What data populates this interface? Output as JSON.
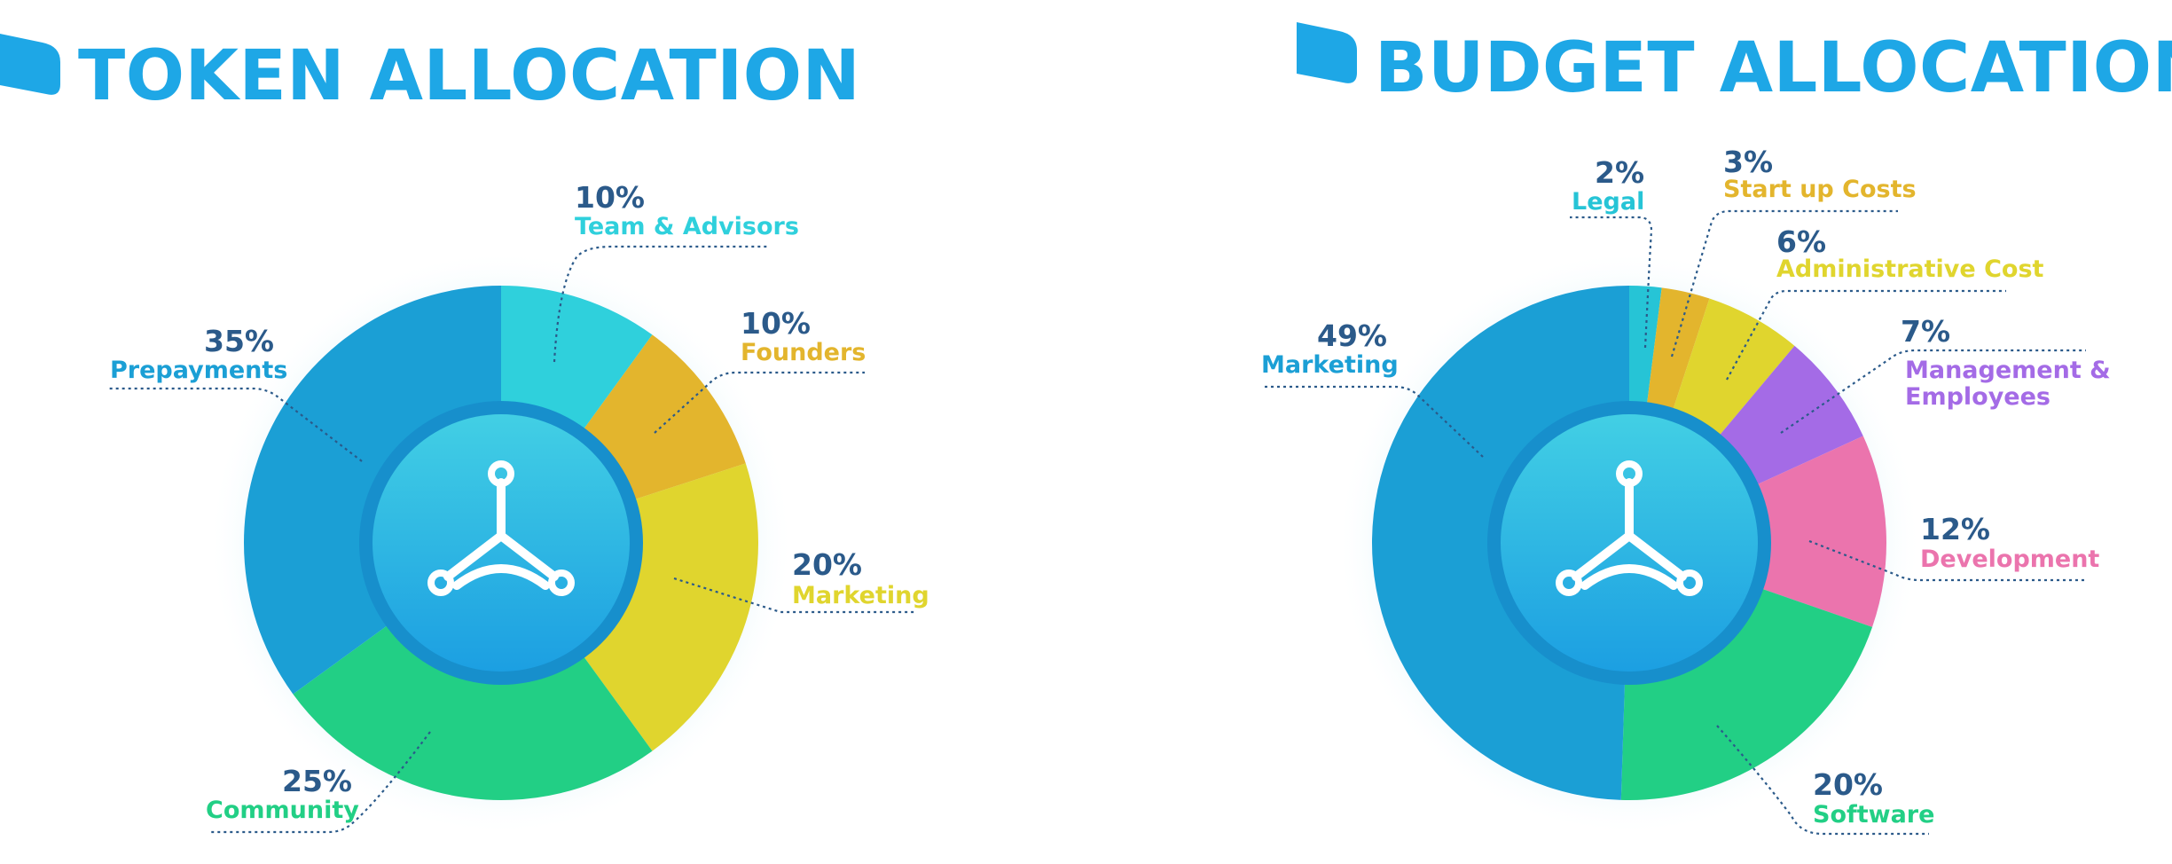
{
  "chart_data": [
    {
      "type": "pie",
      "title": "TOKEN ALLOCATION",
      "categories": [
        "Team & Advisors",
        "Founders",
        "Marketing",
        "Community",
        "Prepayments"
      ],
      "values": [
        10,
        10,
        20,
        25,
        35
      ],
      "value_labels": [
        "10%",
        "10%",
        "20%",
        "25%",
        "35%"
      ],
      "colors": [
        "#2fd0dc",
        "#e3b52d",
        "#e0d52e",
        "#22cf85",
        "#1b9fd5"
      ],
      "legend": "none"
    },
    {
      "type": "pie",
      "title": "BUDGET ALLOCATION",
      "categories": [
        "Legal",
        "Start up Costs",
        "Administrative Cost",
        "Management & Employees",
        "Development",
        "Software",
        "Marketing"
      ],
      "label_lines": [
        [
          "Legal"
        ],
        [
          "Start up Costs"
        ],
        [
          "Administrative Cost"
        ],
        [
          "Management &",
          "Employees"
        ],
        [
          "Development"
        ],
        [
          "Software"
        ],
        [
          "Marketing"
        ]
      ],
      "values": [
        2,
        3,
        6,
        7,
        12,
        20,
        49
      ],
      "value_labels": [
        "2%",
        "3%",
        "6%",
        "7%",
        "12%",
        "20%",
        "49%"
      ],
      "colors": [
        "#26c4d6",
        "#e3b52d",
        "#e0d52e",
        "#a46be6",
        "#eb74ad",
        "#22cf85",
        "#1b9fd5"
      ],
      "legend": "none"
    }
  ],
  "colors": {
    "title": "#1ea7e6",
    "percent_text": "#2b5a8a",
    "center_gradient_top": "#42cfe4",
    "center_gradient_bottom": "#1c9fe2",
    "center_ring": "#178fcc"
  },
  "icons": {
    "title_marker": "tab-flag-icon",
    "center": "network-nodes-icon"
  }
}
